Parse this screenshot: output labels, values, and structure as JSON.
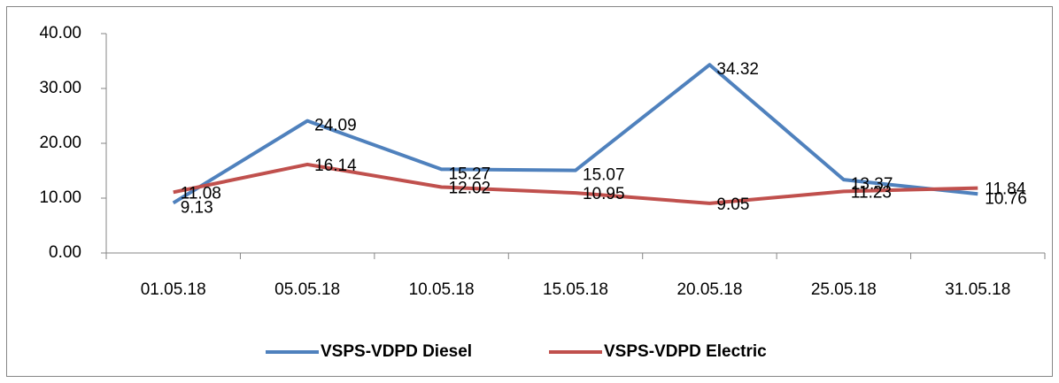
{
  "chart_data": {
    "type": "line",
    "categories": [
      "01.05.18",
      "05.05.18",
      "10.05.18",
      "15.05.18",
      "20.05.18",
      "25.05.18",
      "31.05.18"
    ],
    "series": [
      {
        "name": "VSPS-VDPD Diesel",
        "color": "#4f81bd",
        "values": [
          9.13,
          24.09,
          15.27,
          15.07,
          34.32,
          13.37,
          10.76
        ]
      },
      {
        "name": "VSPS-VDPD Electric",
        "color": "#c0504d",
        "values": [
          11.08,
          16.14,
          12.02,
          10.95,
          9.05,
          11.23,
          11.84
        ]
      }
    ],
    "ylim": [
      0,
      40
    ],
    "yticks": [
      {
        "value": 0,
        "label": "0.00"
      },
      {
        "value": 10,
        "label": "10.00"
      },
      {
        "value": 20,
        "label": "20.00"
      },
      {
        "value": 30,
        "label": "30.00"
      },
      {
        "value": 40,
        "label": "40.00"
      }
    ],
    "grid": false,
    "legend": "bottom"
  }
}
